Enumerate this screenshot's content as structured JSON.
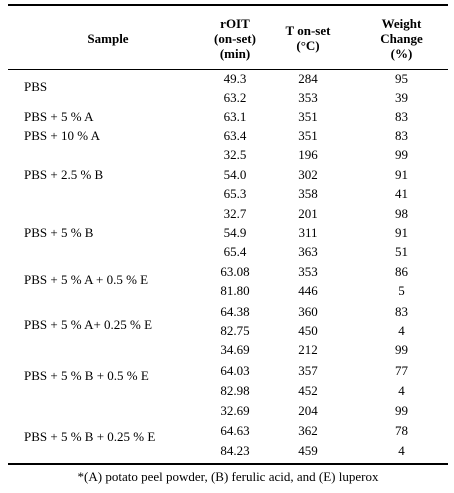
{
  "headers": {
    "sample": "Sample",
    "roit": [
      "rOIT",
      "(on-set)",
      "(min)"
    ],
    "tonset": [
      "T on-set",
      "(°C)"
    ],
    "weight": [
      "Weight",
      "Change",
      "(%)"
    ]
  },
  "rows": [
    {
      "roit": "49.3",
      "tonset": "284",
      "weight": "95"
    },
    {
      "roit": "63.2",
      "tonset": "353",
      "weight": "39"
    },
    {
      "roit": "63.1",
      "tonset": "351",
      "weight": "83"
    },
    {
      "roit": "63.4",
      "tonset": "351",
      "weight": "83"
    },
    {
      "roit": "32.5",
      "tonset": "196",
      "weight": "99"
    },
    {
      "roit": "54.0",
      "tonset": "302",
      "weight": "91"
    },
    {
      "roit": "65.3",
      "tonset": "358",
      "weight": "41"
    },
    {
      "roit": "32.7",
      "tonset": "201",
      "weight": "98"
    },
    {
      "roit": "54.9",
      "tonset": "311",
      "weight": "91"
    },
    {
      "roit": "65.4",
      "tonset": "363",
      "weight": "51"
    },
    {
      "roit": "63.08",
      "tonset": "353",
      "weight": "86"
    },
    {
      "roit": "81.80",
      "tonset": "446",
      "weight": "5"
    },
    {
      "roit": "64.38",
      "tonset": "360",
      "weight": "83"
    },
    {
      "roit": "82.75",
      "tonset": "450",
      "weight": "4"
    },
    {
      "roit": "34.69",
      "tonset": "212",
      "weight": "99"
    },
    {
      "roit": "64.03",
      "tonset": "357",
      "weight": "77"
    },
    {
      "roit": "82.98",
      "tonset": "452",
      "weight": "4"
    },
    {
      "roit": "32.69",
      "tonset": "204",
      "weight": "99"
    },
    {
      "roit": "64.63",
      "tonset": "362",
      "weight": "78"
    },
    {
      "roit": "84.23",
      "tonset": "459",
      "weight": "4"
    }
  ],
  "samples": [
    "PBS",
    "PBS + 5 % A",
    "PBS + 10 % A",
    "PBS + 2.5 % B",
    "PBS + 5 % B",
    "PBS + 5 % A + 0.5 % E",
    "PBS + 5 % A+ 0.25 % E",
    "PBS + 5 % B + 0.5 % E",
    "PBS + 5 % B + 0.25 % E"
  ],
  "footnote": "*(A) potato peel powder, (B) ferulic acid, and (E) luperox"
}
